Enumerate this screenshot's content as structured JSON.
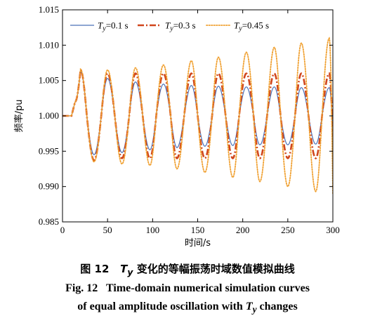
{
  "chart_data": {
    "type": "line",
    "title": "",
    "xlabel": "时间/s",
    "ylabel": "频率/pu",
    "xlim": [
      0,
      300
    ],
    "ylim": [
      0.985,
      1.015
    ],
    "xticks": [
      "0",
      "50",
      "100",
      "150",
      "200",
      "250",
      "300"
    ],
    "yticks": [
      "0.985",
      "0.990",
      "0.995",
      "1.000",
      "1.005",
      "1.010",
      "1.015"
    ],
    "grid": false,
    "legend_position": "top",
    "series": [
      {
        "name": "Ty=0.1 s",
        "label_var": "T",
        "label_sub": "y",
        "label_rest": "=0.1 s",
        "color": "#4a72b8",
        "style": "solid",
        "x": [
          0,
          10,
          14,
          20,
          27,
          35,
          43,
          50,
          58,
          66,
          74,
          81,
          89,
          97,
          104,
          112,
          120,
          127,
          135,
          143,
          150,
          158,
          166,
          173,
          181,
          189,
          196,
          204,
          212,
          219,
          227,
          235,
          242,
          250,
          258,
          265,
          273,
          281,
          288,
          296,
          300
        ],
        "y": [
          1.0,
          1.0,
          1.002,
          1.0063,
          1.0,
          0.9945,
          1.0,
          1.0053,
          1.0,
          0.9948,
          1.0,
          1.0048,
          1.0,
          0.9952,
          1.0,
          1.0045,
          1.0,
          0.9955,
          1.0,
          1.0043,
          1.0,
          0.9957,
          1.0,
          1.0042,
          1.0,
          0.9958,
          1.0,
          1.0041,
          1.0,
          0.9959,
          1.0,
          1.0041,
          1.0,
          0.9959,
          1.0,
          1.004,
          1.0,
          0.996,
          1.0,
          1.004,
          0.998
        ]
      },
      {
        "name": "Ty=0.3 s",
        "label_var": "T",
        "label_sub": "y",
        "label_rest": "=0.3 s",
        "color": "#d0461c",
        "style": "dashdot",
        "x": [
          0,
          10,
          14,
          20,
          27,
          35,
          43,
          50,
          58,
          66,
          74,
          81,
          89,
          97,
          104,
          112,
          120,
          127,
          135,
          143,
          150,
          158,
          166,
          173,
          181,
          189,
          196,
          204,
          212,
          219,
          227,
          235,
          242,
          250,
          258,
          265,
          273,
          281,
          288,
          296,
          300
        ],
        "y": [
          1.0,
          1.0,
          1.002,
          1.0065,
          1.0,
          0.9937,
          1.0,
          1.006,
          1.0,
          0.994,
          1.0,
          1.006,
          1.0,
          0.994,
          1.0,
          1.006,
          1.0,
          0.994,
          1.0,
          1.006,
          1.0,
          0.994,
          1.0,
          1.006,
          1.0,
          0.994,
          1.0,
          1.006,
          1.0,
          0.994,
          1.0,
          1.006,
          1.0,
          0.994,
          1.0,
          1.006,
          1.0,
          0.994,
          1.0,
          1.006,
          0.997
        ]
      },
      {
        "name": "Ty=0.45 s",
        "label_var": "T",
        "label_sub": "y",
        "label_rest": "=0.45 s",
        "color": "#f0a030",
        "style": "dotted",
        "x": [
          0,
          10,
          14,
          20,
          27,
          35,
          43,
          50,
          58,
          66,
          74,
          81,
          89,
          97,
          104,
          112,
          120,
          127,
          135,
          143,
          150,
          158,
          166,
          173,
          181,
          189,
          196,
          204,
          212,
          219,
          227,
          235,
          242,
          250,
          258,
          265,
          273,
          281,
          288,
          296,
          300
        ],
        "y": [
          1.0,
          1.0,
          1.002,
          1.0066,
          1.0,
          0.9935,
          1.0,
          1.0065,
          1.0,
          0.9932,
          1.0,
          1.0068,
          1.0,
          0.993,
          1.0,
          1.0072,
          1.0,
          0.9925,
          1.0,
          1.0078,
          1.0,
          0.992,
          1.0,
          1.0083,
          1.0,
          0.9913,
          1.0,
          1.009,
          1.0,
          0.9907,
          1.0,
          1.0097,
          1.0,
          0.99,
          1.0,
          1.0103,
          1.0,
          0.9893,
          1.0,
          1.011,
          0.989
        ]
      }
    ]
  },
  "caption": {
    "cn_prefix": "图 12",
    "cn_var": "T",
    "cn_sub": "y",
    "cn_rest": "变化的等幅振荡时域数值模拟曲线",
    "en_line1": "Fig. 12   Time-domain numerical simulation curves",
    "en_line2_prefix": "of equal amplitude oscillation with",
    "en_var": "T",
    "en_sub": "y",
    "en_line2_suffix": "changes"
  }
}
